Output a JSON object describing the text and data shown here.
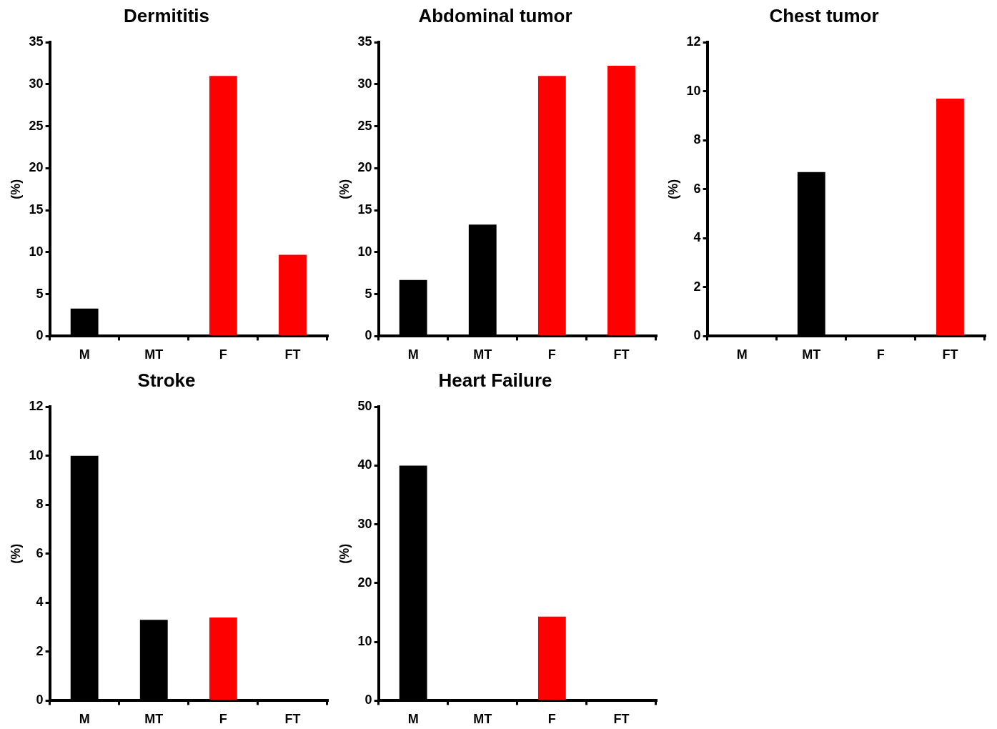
{
  "chart_data": [
    {
      "type": "bar",
      "title": "Dermititis",
      "ylabel": "(%)",
      "categories": [
        "M",
        "MT",
        "F",
        "FT"
      ],
      "values": [
        3.3,
        0,
        31,
        9.7
      ],
      "colors": [
        "#000000",
        "#000000",
        "#ff0000",
        "#ff0000"
      ],
      "ylim": [
        0,
        35
      ],
      "yticks": [
        0,
        5,
        10,
        15,
        20,
        25,
        30,
        35
      ],
      "grid": false,
      "legend": false
    },
    {
      "type": "bar",
      "title": "Abdominal tumor",
      "ylabel": "(%)",
      "categories": [
        "M",
        "MT",
        "F",
        "FT"
      ],
      "values": [
        6.7,
        13.3,
        31,
        32.2
      ],
      "colors": [
        "#000000",
        "#000000",
        "#ff0000",
        "#ff0000"
      ],
      "ylim": [
        0,
        35
      ],
      "yticks": [
        0,
        5,
        10,
        15,
        20,
        25,
        30,
        35
      ],
      "grid": false,
      "legend": false
    },
    {
      "type": "bar",
      "title": "Chest tumor",
      "ylabel": "(%)",
      "categories": [
        "M",
        "MT",
        "F",
        "FT"
      ],
      "values": [
        0,
        6.7,
        0,
        9.7
      ],
      "colors": [
        "#000000",
        "#000000",
        "#ff0000",
        "#ff0000"
      ],
      "ylim": [
        0,
        12
      ],
      "yticks": [
        0,
        2,
        4,
        6,
        8,
        10,
        12
      ],
      "grid": false,
      "legend": false
    },
    {
      "type": "bar",
      "title": "Stroke",
      "ylabel": "(%)",
      "categories": [
        "M",
        "MT",
        "F",
        "FT"
      ],
      "values": [
        10,
        3.3,
        3.4,
        0
      ],
      "colors": [
        "#000000",
        "#000000",
        "#ff0000",
        "#ff0000"
      ],
      "ylim": [
        0,
        12
      ],
      "yticks": [
        0,
        2,
        4,
        6,
        8,
        10,
        12
      ],
      "grid": false,
      "legend": false
    },
    {
      "type": "bar",
      "title": "Heart Failure",
      "ylabel": "(%)",
      "categories": [
        "M",
        "MT",
        "F",
        "FT"
      ],
      "values": [
        40,
        0,
        14.3,
        0
      ],
      "colors": [
        "#000000",
        "#000000",
        "#ff0000",
        "#ff0000"
      ],
      "ylim": [
        0,
        50
      ],
      "yticks": [
        0,
        10,
        20,
        30,
        40,
        50
      ],
      "grid": false,
      "legend": false
    }
  ]
}
